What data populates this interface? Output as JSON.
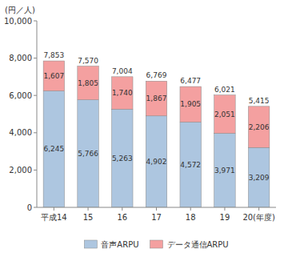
{
  "chart_data": {
    "type": "bar",
    "stacked": true,
    "data_labels": true,
    "grid": false,
    "legend": "bottom",
    "ylabel": "(円／人)",
    "categories": [
      "平成14",
      "15",
      "16",
      "17",
      "18",
      "19",
      "20(年度)"
    ],
    "series": [
      {
        "name": "音声ARPU",
        "color": "#adc6e0",
        "values": [
          6245,
          5766,
          5263,
          4902,
          4572,
          3971,
          3209
        ],
        "value_labels": [
          "6,245",
          "5,766",
          "5,263",
          "4,902",
          "4,572",
          "3,971",
          "3,209"
        ]
      },
      {
        "name": "データ通信ARPU",
        "color": "#f4a0a0",
        "values": [
          1607,
          1805,
          1740,
          1867,
          1905,
          2051,
          2206
        ],
        "value_labels": [
          "1,607",
          "1,805",
          "1,740",
          "1,867",
          "1,905",
          "2,051",
          "2,206"
        ]
      }
    ],
    "totals": [
      7853,
      7570,
      7004,
      6769,
      6477,
      6021,
      5415
    ],
    "total_labels": [
      "7,853",
      "7,570",
      "7,004",
      "6,769",
      "6,477",
      "6,021",
      "5,415"
    ],
    "ylim": [
      0,
      10000
    ],
    "yticks": [
      0,
      {
        "value": 2000,
        "label": "2,000"
      },
      {
        "value": 4000,
        "label": "4,000"
      },
      {
        "value": 6000,
        "label": "6,000"
      },
      {
        "value": 8000,
        "label": "8,000"
      },
      {
        "value": 10000,
        "label": "10,000"
      }
    ]
  }
}
